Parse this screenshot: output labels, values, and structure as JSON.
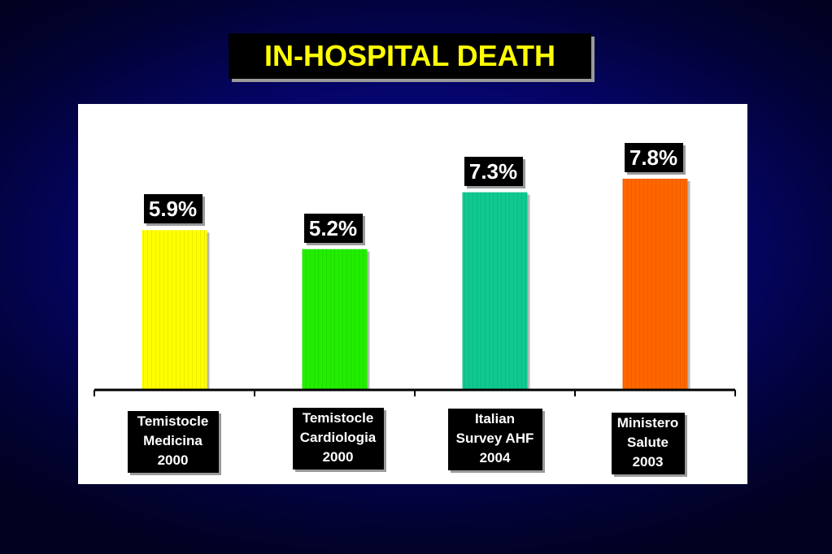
{
  "title": "IN-HOSPITAL DEATH",
  "colors": {
    "background": "#050570",
    "title_text": "#ffff00",
    "panel": "#ffffff",
    "label_box": "#000000",
    "label_text": "#ffffff"
  },
  "chart_data": {
    "type": "bar",
    "categories": [
      [
        "Temistocle",
        "Medicina",
        "2000"
      ],
      [
        "Temistocle",
        "Cardiologia",
        "2000"
      ],
      [
        "Italian",
        "Survey AHF",
        "2004"
      ],
      [
        "Ministero",
        "Salute",
        "2003"
      ]
    ],
    "values": [
      5.9,
      5.2,
      7.3,
      7.8
    ],
    "value_labels": [
      "5.9%",
      "5.2%",
      "7.3%",
      "7.8%"
    ],
    "bar_colors": [
      "#ffff00",
      "#22ee00",
      "#10c890",
      "#ff6600"
    ],
    "ylim": [
      0,
      9.0
    ],
    "grid": false,
    "xlabel": "",
    "ylabel": ""
  }
}
